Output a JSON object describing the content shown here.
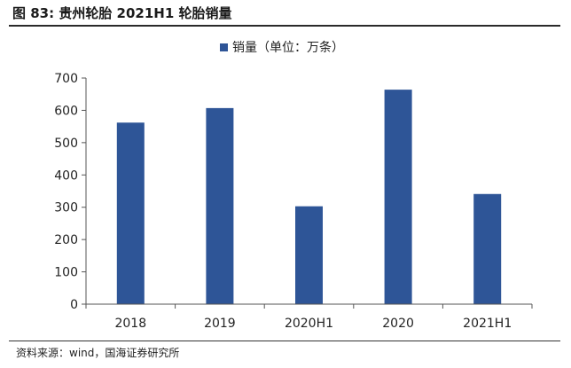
{
  "figure": {
    "title": "图 83:  贵州轮胎 2021H1 轮胎销量",
    "source": "资料来源：wind，国海证券研究所"
  },
  "chart_data": {
    "type": "bar",
    "categories": [
      "2018",
      "2019",
      "2020H1",
      "2020",
      "2021H1"
    ],
    "series": [
      {
        "name": "销量（单位：万条）",
        "values": [
          562,
          607,
          303,
          664,
          341
        ],
        "color": "#2E5597"
      }
    ],
    "title": "",
    "xlabel": "",
    "ylabel": "",
    "ylim": [
      0,
      700
    ],
    "yticks": [
      0,
      100,
      200,
      300,
      400,
      500,
      600,
      700
    ],
    "grid": false,
    "legend": "top-center"
  }
}
